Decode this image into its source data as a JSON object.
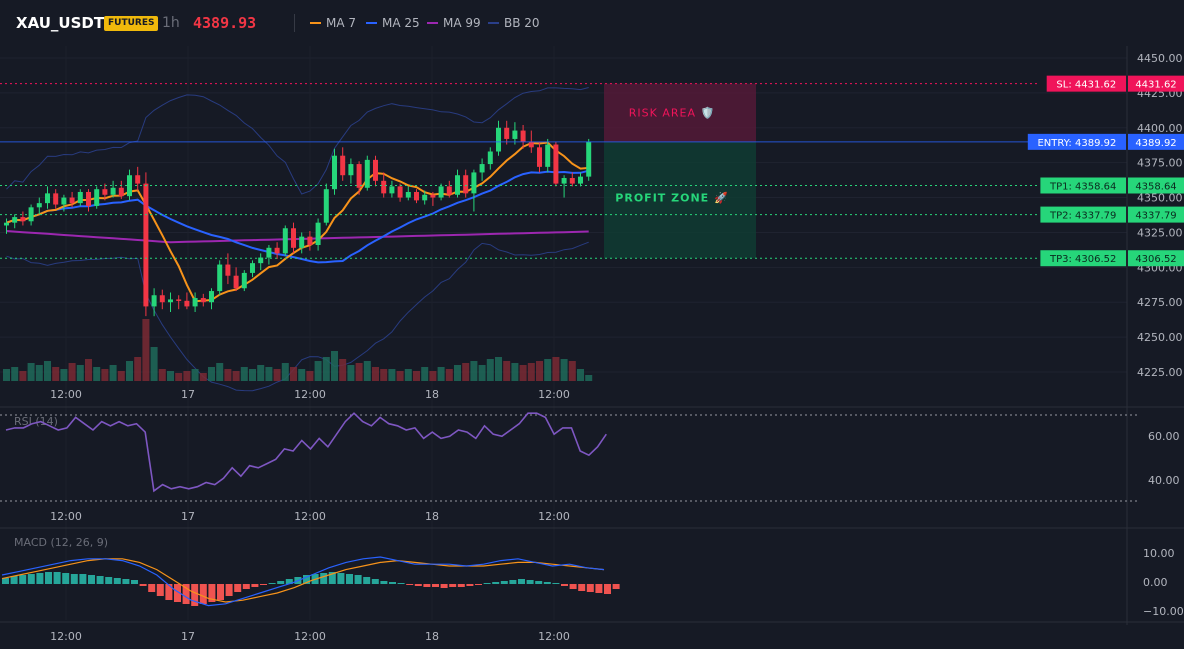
{
  "header": {
    "symbol": "XAU_USDT",
    "badge": "FUTURES",
    "timeframe": "1h",
    "last_price": "4389.93"
  },
  "legend": [
    {
      "label": "MA 7",
      "color": "#f7931a"
    },
    {
      "label": "MA 25",
      "color": "#2962ff"
    },
    {
      "label": "MA 99",
      "color": "#9c27b0"
    },
    {
      "label": "BB 20",
      "color": "#2a3f8a"
    }
  ],
  "colors": {
    "up": "#26d67a",
    "down": "#f23645",
    "sl": "#f0145a",
    "entry": "#2962ff",
    "tp": "#26d67a",
    "rsi": "#7e57c2",
    "macd_line": "#2962ff",
    "signal_line": "#f7931a",
    "hist_up": "#26a69a",
    "hist_down": "#ef5350"
  },
  "price_axis": {
    "ticks": [
      "4450.00",
      "4425.00",
      "4400.00",
      "4375.00",
      "4350.00",
      "4325.00",
      "4300.00",
      "4275.00",
      "4250.00",
      "4225.00"
    ]
  },
  "time_axis": {
    "ticks": [
      "12:00",
      "17",
      "12:00",
      "18",
      "12:00"
    ]
  },
  "levels": {
    "sl": {
      "tag": "SL: 4431.62",
      "value": "4431.62"
    },
    "entry": {
      "tag": "ENTRY: 4389.92",
      "value": "4389.92"
    },
    "tp1": {
      "tag": "TP1: 4358.64",
      "value": "4358.64"
    },
    "tp2": {
      "tag": "TP2: 4337.79",
      "value": "4337.79"
    },
    "tp3": {
      "tag": "TP3: 4306.52",
      "value": "4306.52"
    }
  },
  "zones": {
    "risk_label": "RISK AREA 🛡️",
    "profit_label": "PROFIT ZONE 🚀"
  },
  "rsi": {
    "label": "RSI (14)",
    "ticks": [
      "60.00",
      "40.00"
    ]
  },
  "macd": {
    "label": "MACD (12, 26, 9)",
    "ticks": [
      "10.00",
      "0.00",
      "−10.00"
    ]
  }
}
